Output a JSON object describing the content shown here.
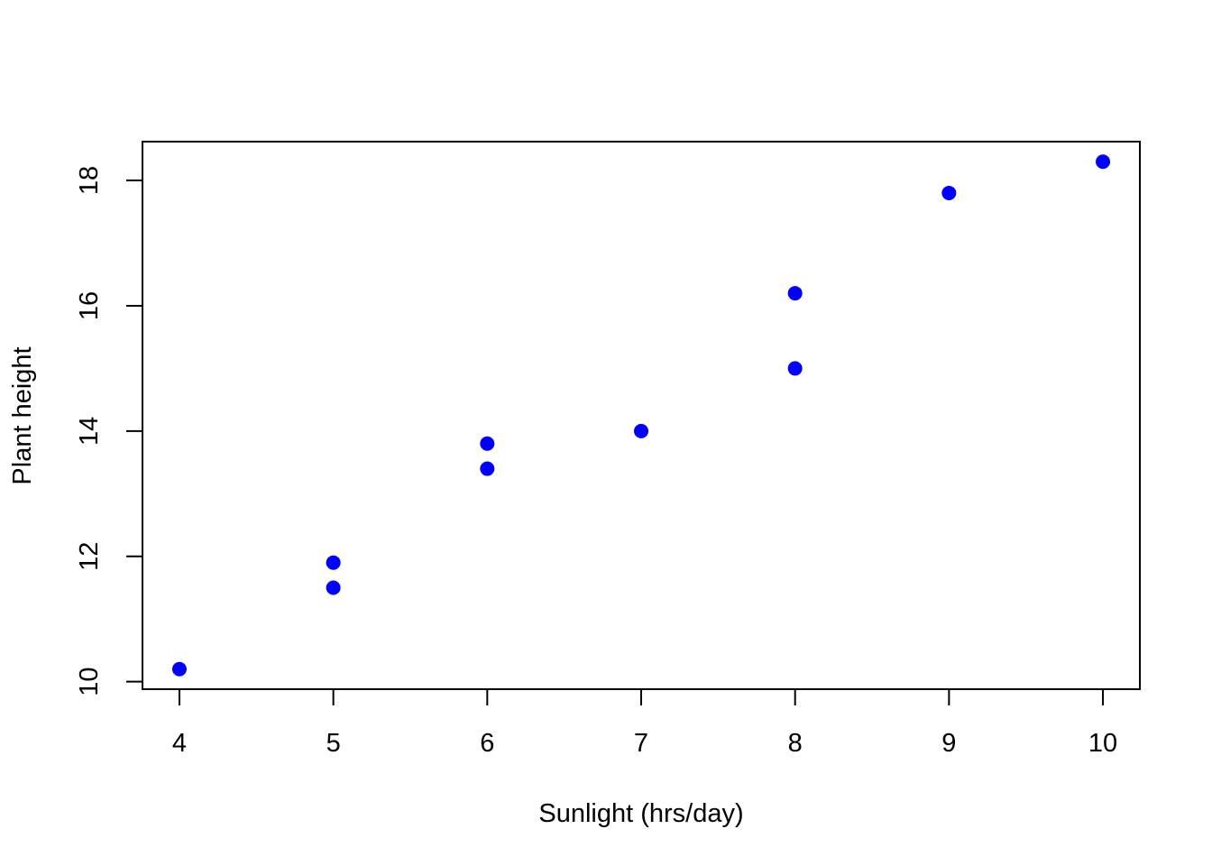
{
  "chart_data": {
    "type": "scatter",
    "title": "",
    "xlabel": "Sunlight (hrs/day)",
    "ylabel": "Plant height",
    "xlim": [
      3.76,
      10.24
    ],
    "ylim": [
      9.88,
      18.62
    ],
    "x_ticks": [
      4,
      5,
      6,
      7,
      8,
      9,
      10
    ],
    "y_ticks": [
      10,
      12,
      14,
      16,
      18
    ],
    "grid": false,
    "point_color": "#0000FF",
    "axis_color": "#000000",
    "series": [
      {
        "points": [
          {
            "x": 4,
            "y": 10.2
          },
          {
            "x": 5,
            "y": 11.5
          },
          {
            "x": 5,
            "y": 11.9
          },
          {
            "x": 6,
            "y": 13.4
          },
          {
            "x": 6,
            "y": 13.8
          },
          {
            "x": 7,
            "y": 14.0
          },
          {
            "x": 8,
            "y": 15.0
          },
          {
            "x": 8,
            "y": 16.2
          },
          {
            "x": 9,
            "y": 17.8
          },
          {
            "x": 10,
            "y": 18.3
          }
        ]
      }
    ]
  }
}
